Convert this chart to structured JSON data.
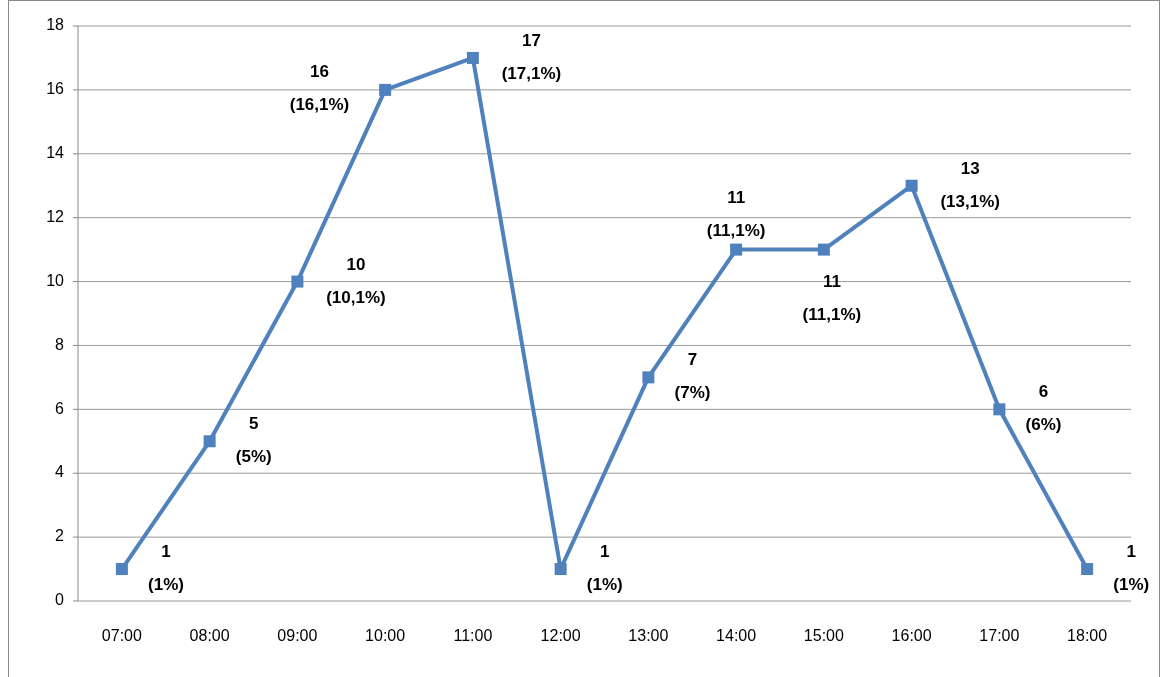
{
  "chart_data": {
    "type": "line",
    "categories": [
      "07:00",
      "08:00",
      "09:00",
      "10:00",
      "11:00",
      "12:00",
      "13:00",
      "14:00",
      "15:00",
      "16:00",
      "17:00",
      "18:00"
    ],
    "series": [
      {
        "color": "#4f81bd",
        "values": [
          1,
          5,
          10,
          16,
          17,
          1,
          7,
          11,
          11,
          13,
          6,
          1
        ],
        "value_labels": [
          "1\n(1%)",
          "5\n(5%)",
          "10\n(10,1%)",
          "16\n(16,1%)",
          "17\n(17,1%)",
          "1\n(1%)",
          "7\n(7%)",
          "11\n(11,1%)",
          "11\n(11,1%)",
          "13\n(13,1%)",
          "6\n(6%)",
          "1\n(1%)"
        ]
      }
    ],
    "ylim": [
      0,
      18
    ],
    "yticks": [
      0,
      2,
      4,
      6,
      8,
      10,
      12,
      14,
      16,
      18
    ],
    "grid": "y",
    "marker": "square",
    "line_style": "solid"
  }
}
